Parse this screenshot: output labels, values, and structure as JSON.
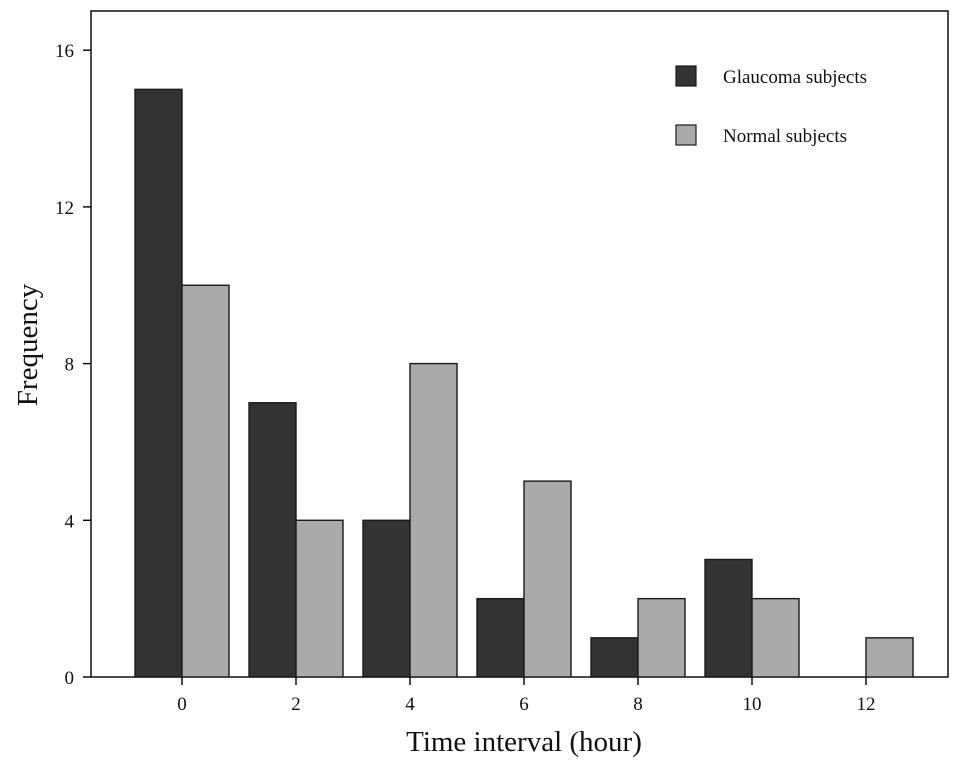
{
  "chart_data": {
    "type": "bar",
    "xlabel": "Time interval (hour)",
    "ylabel": "Frequency",
    "categories": [
      "0",
      "2",
      "4",
      "6",
      "8",
      "10",
      "12"
    ],
    "ylim": [
      0,
      17
    ],
    "y_ticks": [
      0,
      4,
      8,
      12,
      16
    ],
    "series": [
      {
        "name": "Glaucoma subjects",
        "color": "#333333",
        "values": [
          15,
          7,
          4,
          2,
          1,
          3,
          0
        ]
      },
      {
        "name": "Normal subjects",
        "color": "#aaaaaa",
        "values": [
          10,
          4,
          8,
          5,
          2,
          2,
          1
        ]
      }
    ],
    "grid": false,
    "legend": {
      "position": "top-right"
    }
  }
}
